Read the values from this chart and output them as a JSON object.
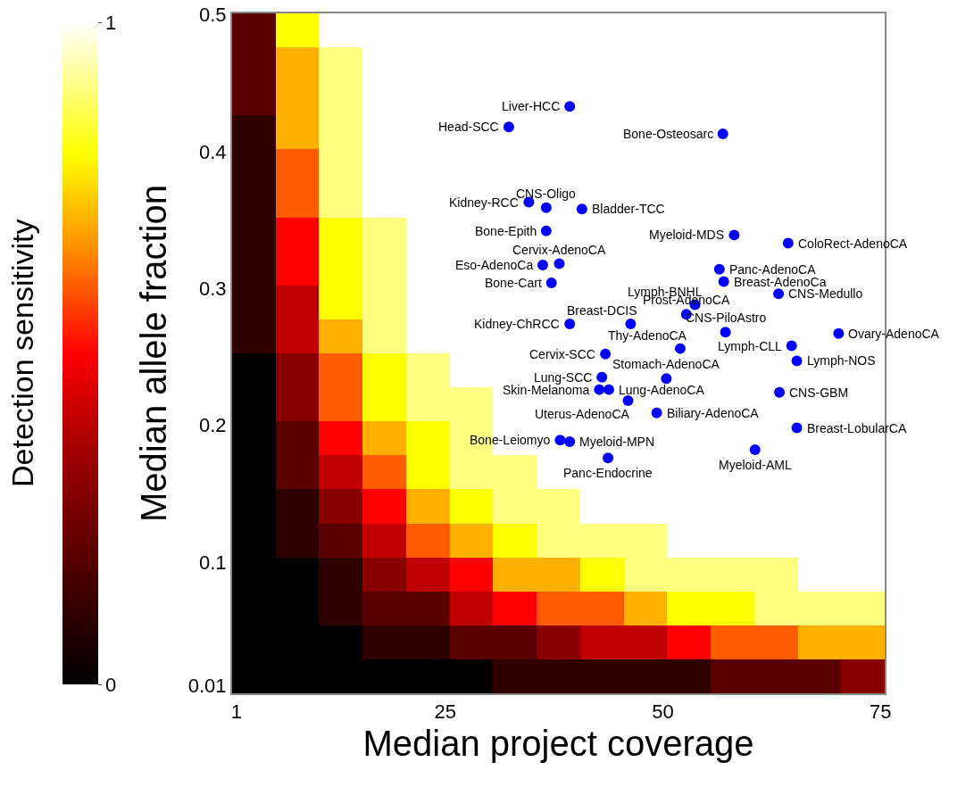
{
  "chart_data": {
    "type": "heatmap",
    "xlabel": "Median project coverage",
    "ylabel": "Median allele fraction",
    "clabel": "Detection sensitivity",
    "cells": [
      [
        0.2,
        0.8,
        1,
        1,
        1,
        1,
        1,
        1,
        1,
        1,
        1,
        1,
        1,
        1,
        1
      ],
      [
        0.2,
        0.7,
        0.9,
        1,
        1,
        1,
        1,
        1,
        1,
        1,
        1,
        1,
        1,
        1,
        1
      ],
      [
        0.2,
        0.7,
        0.9,
        1,
        1,
        1,
        1,
        1,
        1,
        1,
        1,
        1,
        1,
        1,
        1
      ],
      [
        0.1,
        0.7,
        0.9,
        1,
        1,
        1,
        1,
        1,
        1,
        1,
        1,
        1,
        1,
        1,
        1
      ],
      [
        0.1,
        0.6,
        0.9,
        1,
        1,
        1,
        1,
        1,
        1,
        1,
        1,
        1,
        1,
        1,
        1
      ],
      [
        0.1,
        0.6,
        0.9,
        1,
        1,
        1,
        1,
        1,
        1,
        1,
        1,
        1,
        1,
        1,
        1
      ],
      [
        0.1,
        0.5,
        0.8,
        0.9,
        1,
        1,
        1,
        1,
        1,
        1,
        1,
        1,
        1,
        1,
        1
      ],
      [
        0.1,
        0.5,
        0.8,
        0.9,
        1,
        1,
        1,
        1,
        1,
        1,
        1,
        1,
        1,
        1,
        1
      ],
      [
        0.1,
        0.4,
        0.8,
        0.9,
        1,
        1,
        1,
        1,
        1,
        1,
        1,
        1,
        1,
        1,
        1
      ],
      [
        0.1,
        0.4,
        0.7,
        0.9,
        1,
        1,
        1,
        1,
        1,
        1,
        1,
        1,
        1,
        1,
        1
      ],
      [
        0,
        0.3,
        0.6,
        0.8,
        0.9,
        1,
        1,
        1,
        1,
        1,
        1,
        1,
        1,
        1,
        1
      ],
      [
        0,
        0.3,
        0.6,
        0.8,
        0.9,
        0.9,
        1,
        1,
        1,
        1,
        1,
        1,
        1,
        1,
        1
      ],
      [
        0,
        0.2,
        0.5,
        0.7,
        0.8,
        0.9,
        1,
        1,
        1,
        1,
        1,
        1,
        1,
        1,
        1
      ],
      [
        0,
        0.2,
        0.4,
        0.6,
        0.8,
        0.9,
        0.9,
        1,
        1,
        1,
        1,
        1,
        1,
        1,
        1
      ],
      [
        0,
        0.1,
        0.3,
        0.5,
        0.7,
        0.8,
        0.9,
        0.9,
        1,
        1,
        1,
        1,
        1,
        1,
        1
      ],
      [
        0,
        0.1,
        0.2,
        0.4,
        0.6,
        0.7,
        0.8,
        0.9,
        0.9,
        0.9,
        1,
        1,
        1,
        1,
        1
      ],
      [
        0,
        0,
        0.1,
        0.3,
        0.4,
        0.5,
        0.7,
        0.7,
        0.8,
        0.9,
        0.9,
        0.9,
        0.9,
        1,
        1
      ],
      [
        0,
        0,
        0.1,
        0.2,
        0.2,
        0.4,
        0.5,
        0.6,
        0.6,
        0.7,
        0.8,
        0.8,
        0.9,
        0.9,
        0.9
      ],
      [
        0,
        0,
        0,
        0.1,
        0.1,
        0.2,
        0.2,
        0.3,
        0.4,
        0.4,
        0.5,
        0.6,
        0.6,
        0.7,
        0.7
      ],
      [
        0,
        0,
        0,
        0,
        0,
        0,
        0.1,
        0.1,
        0.1,
        0.1,
        0.1,
        0.2,
        0.2,
        0.2,
        0.3
      ]
    ],
    "clim": [
      0,
      1
    ],
    "cticks": [
      0,
      1
    ],
    "xlim": [
      0.5,
      75.5
    ],
    "xticks": [
      1,
      25,
      50,
      75
    ],
    "ylim": [
      0.004,
      0.501
    ],
    "yticks": [
      0.01,
      0.1,
      0.2,
      0.3,
      0.4,
      0.5
    ],
    "marker": "circle",
    "series": [
      {
        "type": "scatter",
        "color": "#0000ff",
        "x": [
          39.3,
          32.3,
          56.9,
          34.6,
          36.6,
          40.7,
          36.6,
          58.2,
          38.1,
          36.2,
          37.2,
          64.4,
          56.5,
          57.0,
          63.3,
          53.7,
          52.7,
          46.3,
          39.3,
          57.2,
          52.0,
          70.2,
          64.8,
          65.4,
          43.4,
          50.4,
          43.0,
          42.7,
          43.8,
          46.0,
          49.3,
          63.4,
          65.4,
          38.2,
          39.3,
          43.7,
          60.6
        ],
        "values": [
          0.433,
          0.418,
          0.413,
          0.363,
          0.359,
          0.358,
          0.342,
          0.339,
          0.318,
          0.317,
          0.304,
          0.333,
          0.314,
          0.305,
          0.296,
          0.288,
          0.281,
          0.274,
          0.274,
          0.268,
          0.256,
          0.267,
          0.258,
          0.247,
          0.252,
          0.234,
          0.235,
          0.226,
          0.226,
          0.218,
          0.209,
          0.224,
          0.198,
          0.189,
          0.188,
          0.176,
          0.182
        ]
      }
    ],
    "annotations": [
      {
        "text": "Liver-HCC",
        "x": 39.3,
        "y": 0.433
      },
      {
        "text": "Head-SCC",
        "x": 32.3,
        "y": 0.418
      },
      {
        "text": "Bone-Osteosarc",
        "x": 56.9,
        "y": 0.413
      },
      {
        "text": "Kidney-RCC",
        "x": 34.6,
        "y": 0.363
      },
      {
        "text": "CNS-Oligo",
        "x": 36.6,
        "y": 0.359
      },
      {
        "text": "Bladder-TCC",
        "x": 40.7,
        "y": 0.358
      },
      {
        "text": "Bone-Epith",
        "x": 36.6,
        "y": 0.342
      },
      {
        "text": "Myeloid-MDS",
        "x": 58.2,
        "y": 0.339
      },
      {
        "text": "Cervix-AdenoCA",
        "x": 38.1,
        "y": 0.318
      },
      {
        "text": "Eso-AdenoCa",
        "x": 36.2,
        "y": 0.317
      },
      {
        "text": "Bone-Cart",
        "x": 37.2,
        "y": 0.304
      },
      {
        "text": "ColoRect-AdenoCA",
        "x": 64.4,
        "y": 0.333
      },
      {
        "text": "Panc-AdenoCA",
        "x": 56.5,
        "y": 0.314
      },
      {
        "text": "Breast-AdenoCa",
        "x": 57.0,
        "y": 0.305
      },
      {
        "text": "CNS-Medullo",
        "x": 63.3,
        "y": 0.296
      },
      {
        "text": "Lymph-BNHL",
        "x": 53.7,
        "y": 0.288
      },
      {
        "text": "Prost-AdenoCA",
        "x": 52.7,
        "y": 0.281
      },
      {
        "text": "Breast-DCIS",
        "x": 46.3,
        "y": 0.274
      },
      {
        "text": "Kidney-ChRCC",
        "x": 39.3,
        "y": 0.274
      },
      {
        "text": "CNS-PiloAstro",
        "x": 57.2,
        "y": 0.268
      },
      {
        "text": "Thy-AdenoCA",
        "x": 52.0,
        "y": 0.256
      },
      {
        "text": "Ovary-AdenoCA",
        "x": 70.2,
        "y": 0.267
      },
      {
        "text": "Lymph-CLL",
        "x": 64.8,
        "y": 0.258
      },
      {
        "text": "Lymph-NOS",
        "x": 65.4,
        "y": 0.247
      },
      {
        "text": "Cervix-SCC",
        "x": 43.4,
        "y": 0.252
      },
      {
        "text": "Stomach-AdenoCA",
        "x": 50.4,
        "y": 0.234
      },
      {
        "text": "Lung-SCC",
        "x": 43.0,
        "y": 0.235
      },
      {
        "text": "Skin-Melanoma",
        "x": 42.7,
        "y": 0.226
      },
      {
        "text": "Lung-AdenoCA",
        "x": 43.8,
        "y": 0.226
      },
      {
        "text": "Uterus-AdenoCA",
        "x": 46.0,
        "y": 0.218
      },
      {
        "text": "Biliary-AdenoCA",
        "x": 49.3,
        "y": 0.209
      },
      {
        "text": "CNS-GBM",
        "x": 63.4,
        "y": 0.224
      },
      {
        "text": "Breast-LobularCA",
        "x": 65.4,
        "y": 0.198
      },
      {
        "text": "Bone-Leiomyo",
        "x": 38.2,
        "y": 0.189
      },
      {
        "text": "Myeloid-MPN",
        "x": 39.3,
        "y": 0.188
      },
      {
        "text": "Panc-Endocrine",
        "x": 43.7,
        "y": 0.176
      },
      {
        "text": "Myeloid-AML",
        "x": 60.6,
        "y": 0.182
      }
    ]
  }
}
